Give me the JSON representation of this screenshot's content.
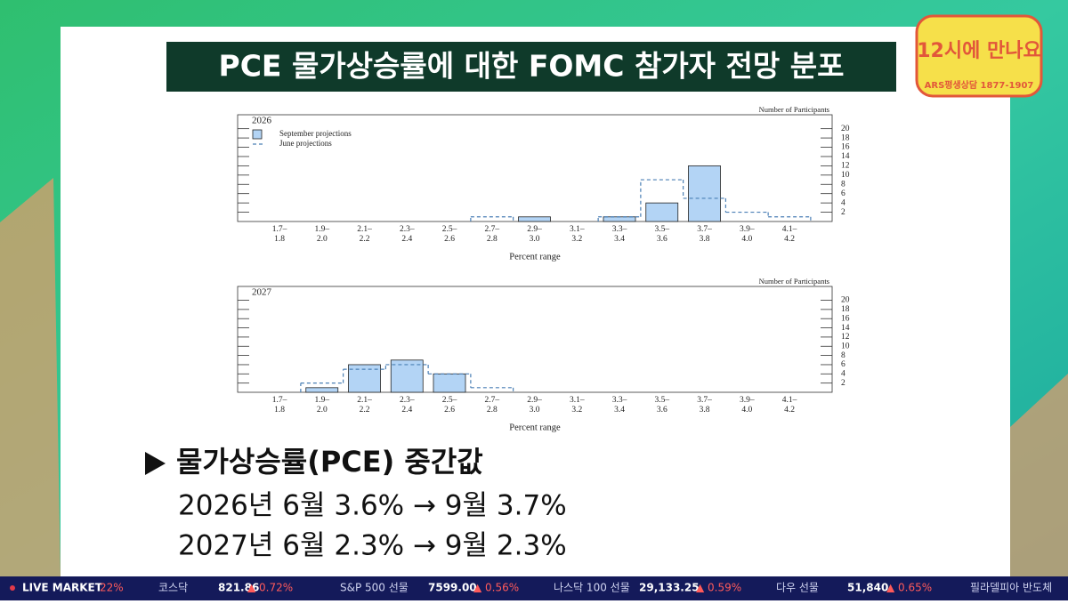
{
  "header": {
    "title": "PCE 물가상승률에 대한 FOMC 참가자 전망 분포"
  },
  "logo": {
    "title": "12시에 만나요",
    "subtitle": "ARS평생상담 1877-1907"
  },
  "chart_data": [
    {
      "type": "bar",
      "title": "2026",
      "y_axis_label": "Number of Participants",
      "x_axis_label": "Percent range",
      "categories": [
        [
          "1.7–",
          "1.8"
        ],
        [
          "1.9–",
          "2.0"
        ],
        [
          "2.1–",
          "2.2"
        ],
        [
          "2.3–",
          "2.4"
        ],
        [
          "2.5–",
          "2.6"
        ],
        [
          "2.7–",
          "2.8"
        ],
        [
          "2.9–",
          "3.0"
        ],
        [
          "3.1–",
          "3.2"
        ],
        [
          "3.3–",
          "3.4"
        ],
        [
          "3.5–",
          "3.6"
        ],
        [
          "3.7–",
          "3.8"
        ],
        [
          "3.9–",
          "4.0"
        ],
        [
          "4.1–",
          "4.2"
        ]
      ],
      "series": [
        {
          "name": "September projections",
          "color": "#b3d4f5",
          "values": [
            0,
            0,
            0,
            0,
            0,
            0,
            1,
            0,
            1,
            4,
            12,
            0,
            0
          ]
        },
        {
          "name": "June projections",
          "color": "#4a7fb5",
          "values": [
            0,
            0,
            0,
            0,
            0,
            1,
            0,
            0,
            1,
            9,
            5,
            2,
            1
          ]
        }
      ],
      "ylim": [
        0,
        23
      ],
      "yticks": [
        2,
        4,
        6,
        8,
        10,
        12,
        14,
        16,
        18,
        20
      ],
      "legend": true
    },
    {
      "type": "bar",
      "title": "2027",
      "y_axis_label": "Number of Participants",
      "x_axis_label": "Percent range",
      "categories": [
        [
          "1.7–",
          "1.8"
        ],
        [
          "1.9–",
          "2.0"
        ],
        [
          "2.1–",
          "2.2"
        ],
        [
          "2.3–",
          "2.4"
        ],
        [
          "2.5–",
          "2.6"
        ],
        [
          "2.7–",
          "2.8"
        ],
        [
          "2.9–",
          "3.0"
        ],
        [
          "3.1–",
          "3.2"
        ],
        [
          "3.3–",
          "3.4"
        ],
        [
          "3.5–",
          "3.6"
        ],
        [
          "3.7–",
          "3.8"
        ],
        [
          "3.9–",
          "4.0"
        ],
        [
          "4.1–",
          "4.2"
        ]
      ],
      "series": [
        {
          "color": "#b3d4f5",
          "values": [
            0,
            1,
            6,
            7,
            4,
            0,
            0,
            0,
            0,
            0,
            0,
            0,
            0
          ]
        },
        {
          "color": "#4a7fb5",
          "values": [
            0,
            2,
            5,
            6,
            4,
            1,
            0,
            0,
            0,
            0,
            0,
            0,
            0
          ]
        }
      ],
      "ylim": [
        0,
        23
      ],
      "yticks": [
        2,
        4,
        6,
        8,
        10,
        12,
        14,
        16,
        18,
        20
      ],
      "legend": false
    }
  ],
  "summary": {
    "heading": "물가상승률(PCE) 중간값",
    "lines": [
      "2026년 6월 3.6% → 9월 3.7%",
      "2027년 6월 2.3% → 9월 2.3%"
    ]
  },
  "ticker": {
    "label": "LIVE MARKET",
    "lead": "22%",
    "items": [
      [
        "코스닥",
        "821.86",
        "▲ 0.72%"
      ],
      [
        "S&P 500 선물",
        "7599.00",
        "▲ 0.56%"
      ],
      [
        "나스닥 100 선물",
        "29,133.25",
        "▲ 0.59%"
      ],
      [
        "다우 선물",
        "51,840",
        "▲ 0.65%"
      ]
    ],
    "tail": "필라델피아 반도체"
  }
}
